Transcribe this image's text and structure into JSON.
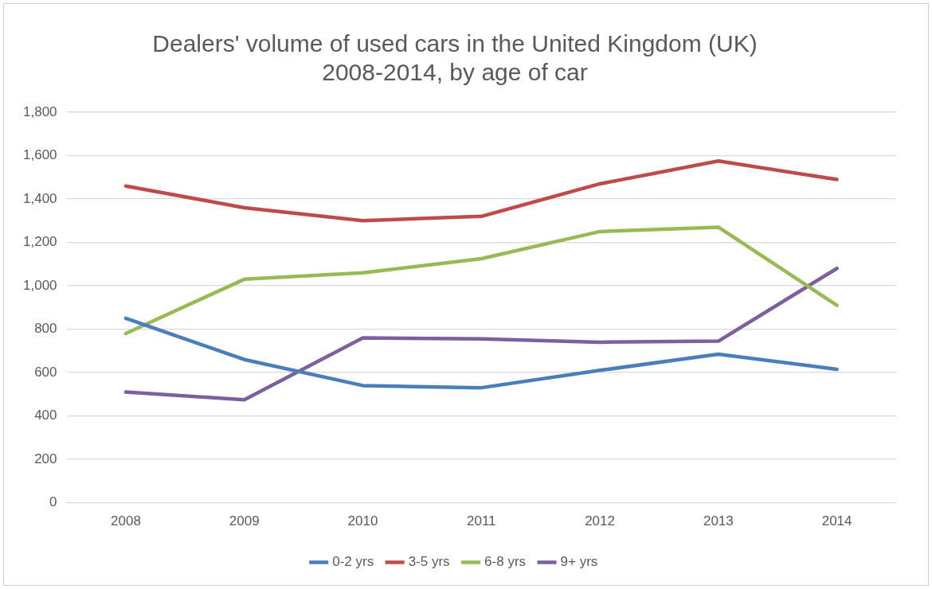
{
  "chart_data": {
    "type": "line",
    "title": "Dealers' volume of used cars in the United Kingdom (UK)\n2008-2014, by age of car",
    "categories": [
      "2008",
      "2009",
      "2010",
      "2011",
      "2012",
      "2013",
      "2014"
    ],
    "series": [
      {
        "name": "0-2 yrs",
        "color": "#4a7ebb",
        "values": [
          850,
          660,
          540,
          530,
          610,
          685,
          615
        ]
      },
      {
        "name": "3-5 yrs",
        "color": "#be4b48",
        "values": [
          1460,
          1360,
          1300,
          1320,
          1470,
          1575,
          1490
        ]
      },
      {
        "name": "6-8 yrs",
        "color": "#98b954",
        "values": [
          780,
          1030,
          1060,
          1125,
          1250,
          1270,
          910
        ]
      },
      {
        "name": "9+ yrs",
        "color": "#7d5fa0",
        "values": [
          510,
          475,
          760,
          755,
          740,
          745,
          1080
        ]
      }
    ],
    "ylim": [
      0,
      1800
    ],
    "yticks": [
      0,
      200,
      400,
      600,
      800,
      {
        "value": 1000,
        "label": "1,000"
      },
      {
        "value": 1200,
        "label": "1,200"
      },
      {
        "value": 1400,
        "label": "1,400"
      },
      {
        "value": 1600,
        "label": "1,600"
      },
      {
        "value": 1800,
        "label": "1,800"
      }
    ],
    "grid": "y",
    "legend": "bottom",
    "marker": "none",
    "line_style": "solid"
  }
}
